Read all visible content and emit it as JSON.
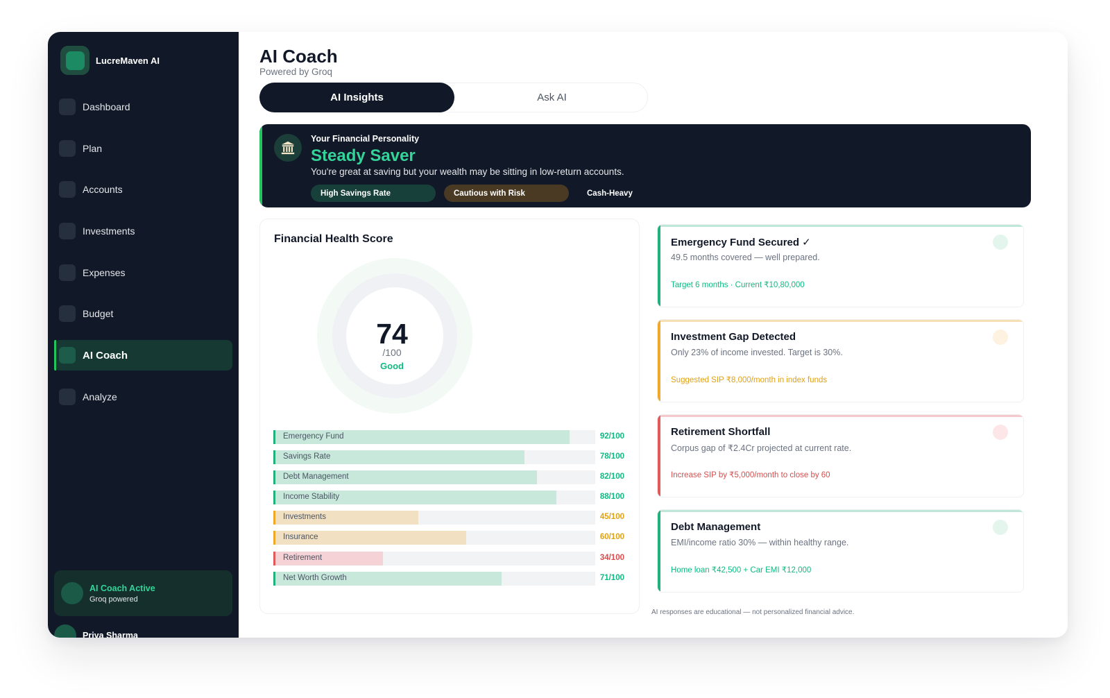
{
  "brand": {
    "name": "LucreMaven AI"
  },
  "nav": {
    "items": [
      {
        "label": "Dashboard"
      },
      {
        "label": "Plan"
      },
      {
        "label": "Accounts"
      },
      {
        "label": "Investments"
      },
      {
        "label": "Expenses"
      },
      {
        "label": "Budget"
      },
      {
        "label": "AI Coach",
        "active": true
      },
      {
        "label": "Analyze"
      }
    ]
  },
  "coach_status": {
    "title": "AI Coach Active",
    "subtitle": "Groq powered"
  },
  "user": {
    "name": "Priya Sharma"
  },
  "page": {
    "title": "AI Coach",
    "subtitle": "Powered by Groq"
  },
  "tabs": [
    {
      "label": "AI Insights",
      "selected": true
    },
    {
      "label": "Ask AI",
      "selected": false
    }
  ],
  "personality": {
    "icon": "bank-icon",
    "label": "Your Financial Personality",
    "type": "Steady Saver",
    "description": "You're great at saving but your wealth may be sitting in low-return accounts.",
    "tags": [
      "High Savings Rate",
      "Cautious with Risk",
      "Cash-Heavy"
    ]
  },
  "health": {
    "title": "Financial Health Score",
    "score": "74",
    "max": "/100",
    "grade": "Good",
    "metrics": [
      {
        "label": "Emergency Fund",
        "value": 92,
        "display": "92/100",
        "status": "good"
      },
      {
        "label": "Savings Rate",
        "value": 78,
        "display": "78/100",
        "status": "good"
      },
      {
        "label": "Debt Management",
        "value": 82,
        "display": "82/100",
        "status": "good"
      },
      {
        "label": "Income Stability",
        "value": 88,
        "display": "88/100",
        "status": "good"
      },
      {
        "label": "Investments",
        "value": 45,
        "display": "45/100",
        "status": "warn"
      },
      {
        "label": "Insurance",
        "value": 60,
        "display": "60/100",
        "status": "warn"
      },
      {
        "label": "Retirement",
        "value": 34,
        "display": "34/100",
        "status": "bad"
      },
      {
        "label": "Net Worth Growth",
        "value": 71,
        "display": "71/100",
        "status": "good"
      }
    ]
  },
  "insights": [
    {
      "title": "Emergency Fund Secured",
      "check": "✓",
      "description": "49.5 months covered — well prepared.",
      "action": "Target 6 months  ·  Current ₹10,80,000",
      "status": "good"
    },
    {
      "title": "Investment Gap Detected",
      "check": "",
      "description": "Only 23% of income invested. Target is 30%.",
      "action": "Suggested SIP ₹8,000/month in index funds",
      "status": "warn"
    },
    {
      "title": "Retirement Shortfall",
      "check": "",
      "description": "Corpus gap of ₹2.4Cr projected at current rate.",
      "action": "Increase SIP by ₹5,000/month to close by 60",
      "status": "bad"
    },
    {
      "title": "Debt Management",
      "check": "",
      "description": "EMI/income ratio 30% — within healthy range.",
      "action": "Home loan ₹42,500 + Car EMI ₹12,000",
      "status": "good"
    }
  ],
  "disclaimer": "AI responses are educational — not personalized financial advice.",
  "colors": {
    "good": {
      "accent": "#22b07d",
      "fill": "#c8e8dc",
      "text": "#10b981",
      "top": "#bfe7d7",
      "dot": "#e4f5ee"
    },
    "warn": {
      "accent": "#f0a92a",
      "fill": "#f2e0c2",
      "text": "#e0a116",
      "top": "#f5dfb3",
      "dot": "#fdf1e0"
    },
    "bad": {
      "accent": "#e05a5a",
      "fill": "#f4d2d6",
      "text": "#dc4a4a",
      "top": "#f5c9cc",
      "dot": "#fde6e8"
    }
  }
}
